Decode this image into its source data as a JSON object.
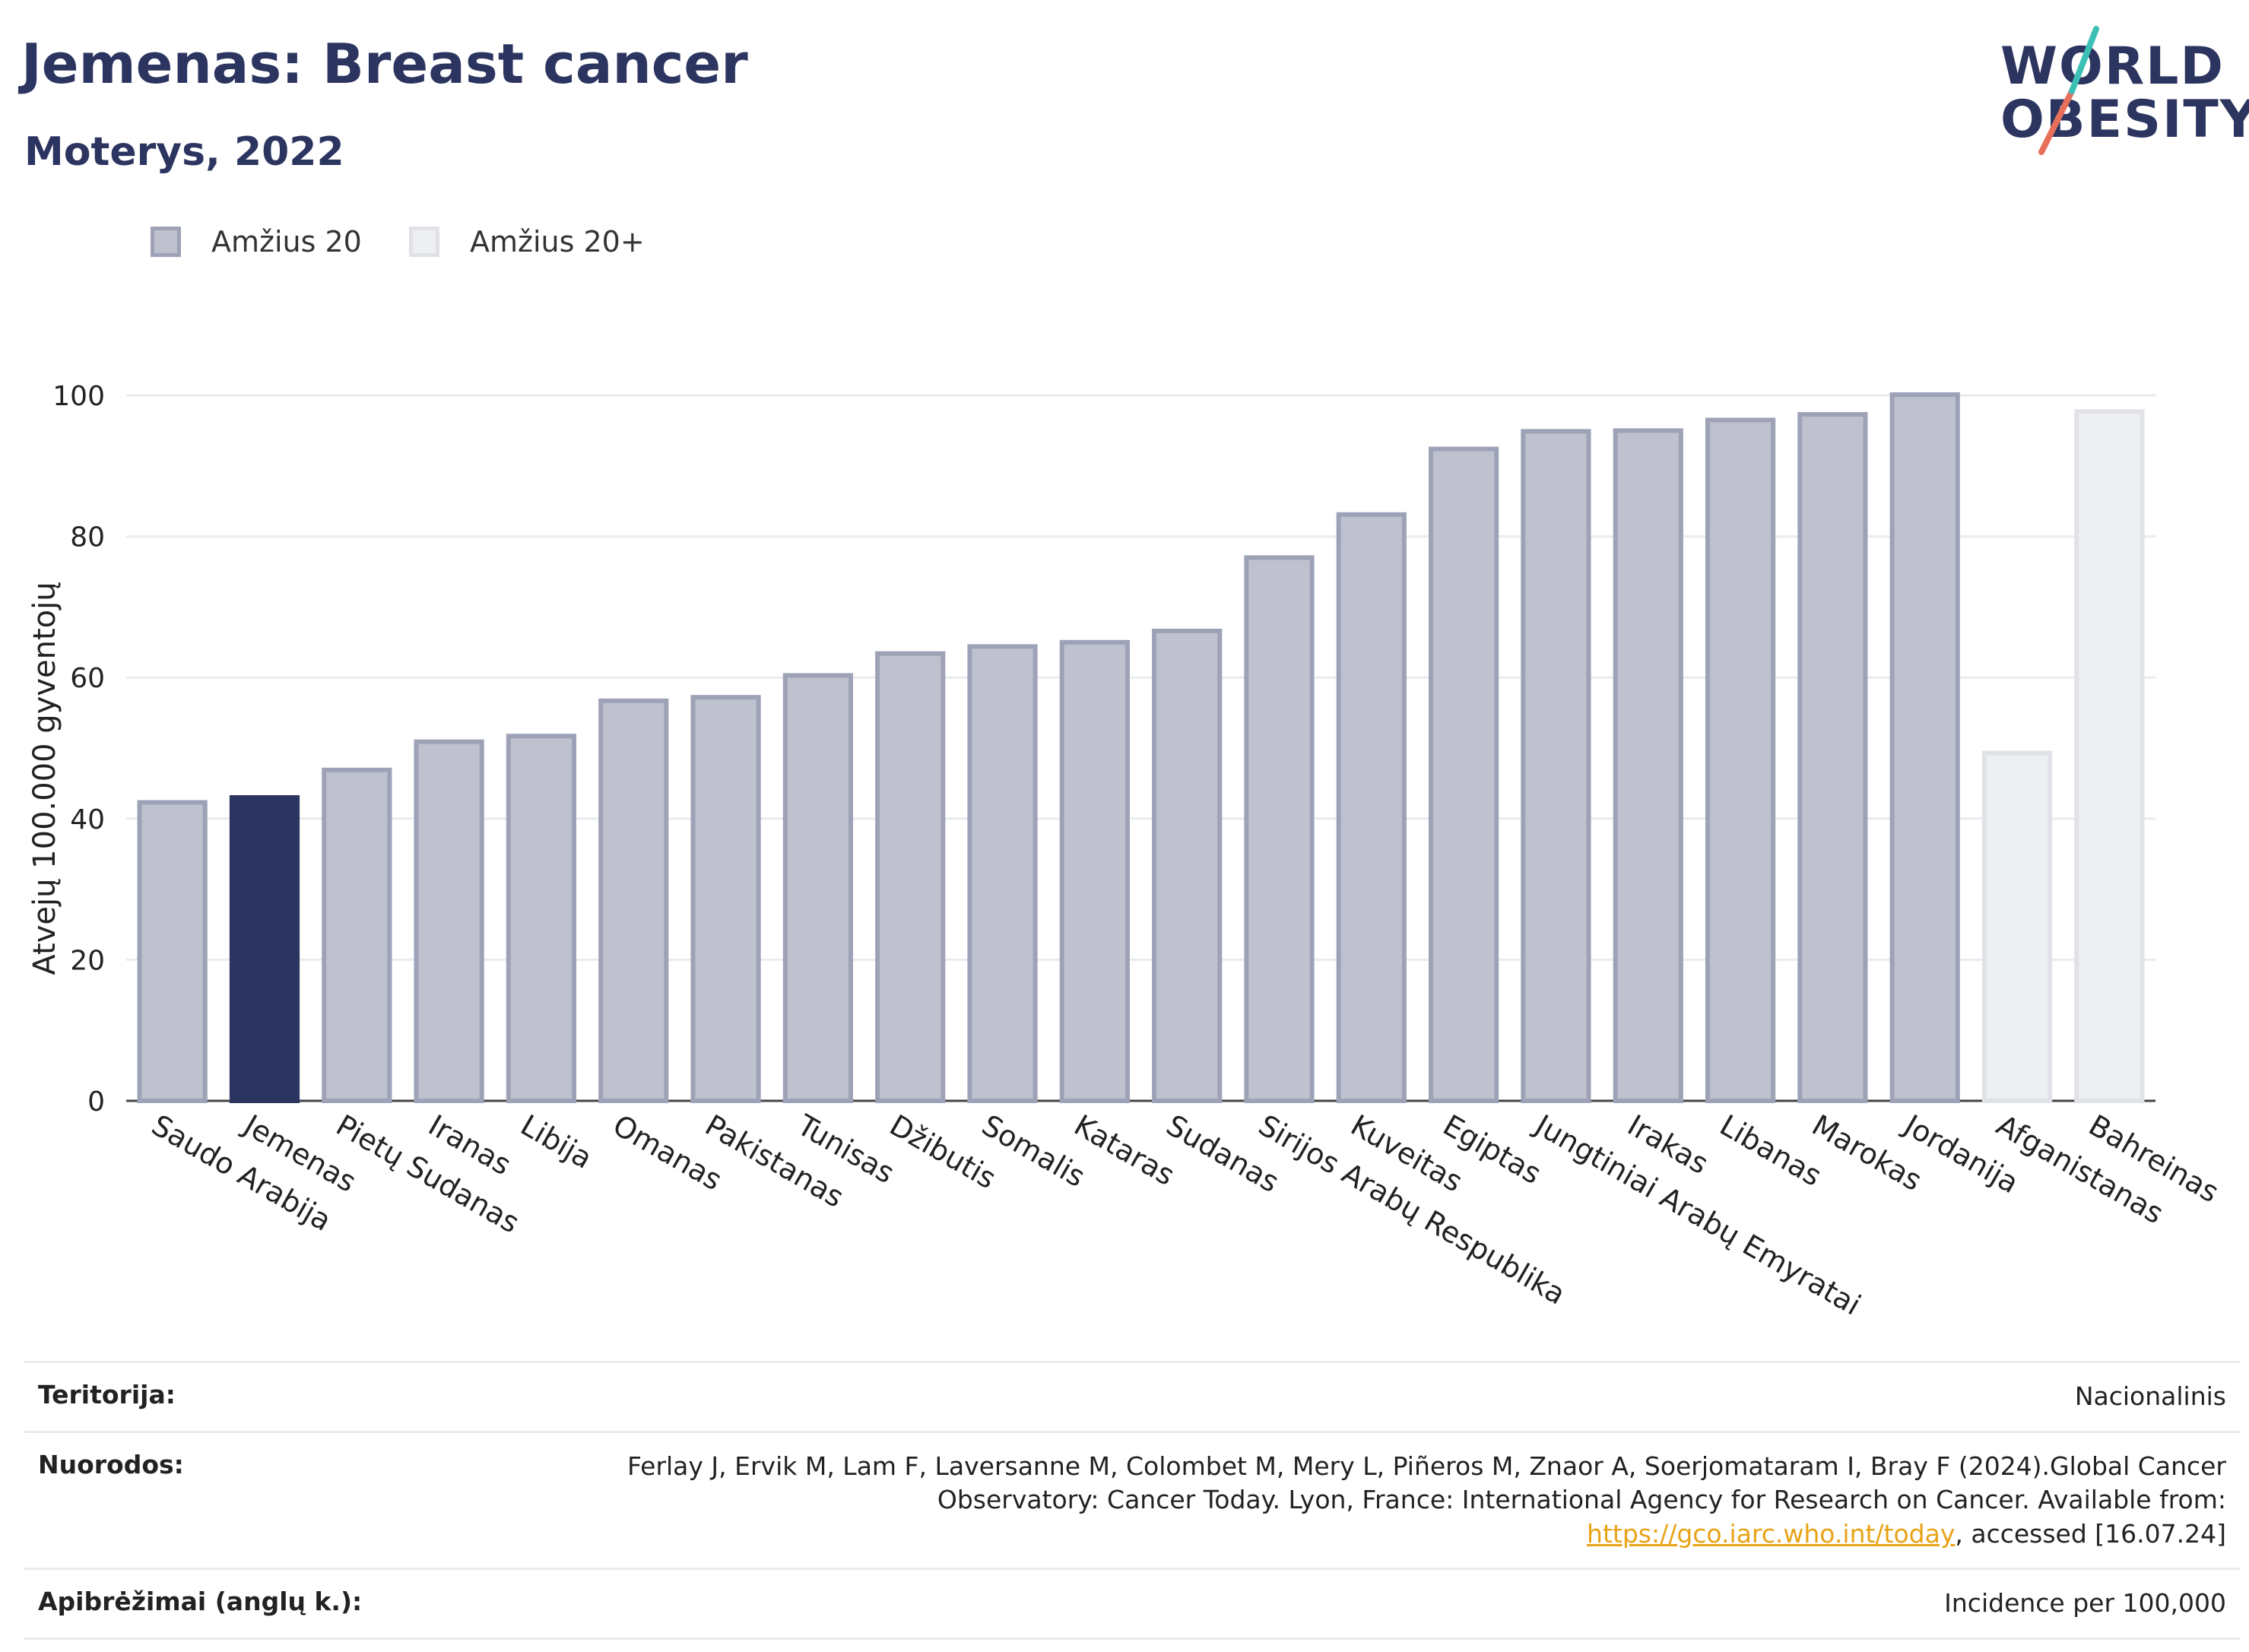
{
  "header": {
    "title": "Jemenas: Breast cancer",
    "subtitle": "Moterys, 2022"
  },
  "logo": {
    "line1": "WORLD",
    "line2": "OBESITY"
  },
  "legend": {
    "items": [
      {
        "label": "Amžius 20",
        "color": "#2c3560"
      },
      {
        "label": "Amžius 20+",
        "color": "#e4e6ec"
      }
    ]
  },
  "chart_data": {
    "type": "bar",
    "ylabel": "Atvejų 100.000 gyventojų",
    "ylim": [
      0,
      100
    ],
    "yticks": [
      0,
      20,
      40,
      60,
      80,
      100
    ],
    "grid": true,
    "legend_position": "top-left",
    "categories": [
      "Saudo Arabija",
      "Jemenas",
      "Pietų Sudanas",
      "Iranas",
      "Libija",
      "Omanas",
      "Pakistanas",
      "Tunisas",
      "Džibutis",
      "Somalis",
      "Kataras",
      "Sudanas",
      "Sirijos Arabų Respublika",
      "Kuveitas",
      "Egiptas",
      "Jungtiniai Arabų Emyratai",
      "Irakas",
      "Libanas",
      "Marokas",
      "Jordanija",
      "Afganistanas",
      "Bahreinas"
    ],
    "values": [
      42.3,
      43,
      46.9,
      50.9,
      51.7,
      56.7,
      57.2,
      60.3,
      63.4,
      64.4,
      65,
      66.6,
      77,
      83.1,
      92.4,
      94.9,
      95,
      96.5,
      97.3,
      100.1,
      49.3,
      97.7
    ],
    "series_membership": [
      "Amžius 20",
      "Amžius 20",
      "Amžius 20",
      "Amžius 20",
      "Amžius 20",
      "Amžius 20",
      "Amžius 20",
      "Amžius 20",
      "Amžius 20",
      "Amžius 20",
      "Amžius 20",
      "Amžius 20",
      "Amžius 20",
      "Amžius 20",
      "Amžius 20",
      "Amžius 20",
      "Amžius 20",
      "Amžius 20",
      "Amžius 20",
      "Amžius 20",
      "Amžius 20+",
      "Amžius 20+"
    ],
    "highlight": "Jemenas",
    "colors": {
      "highlight": "#2c3560",
      "age20_fill": "#bfc2ce",
      "age20_stroke": "#9da2b7",
      "age20plus_fill": "#eeeff3",
      "age20plus_stroke": "#e0e2e8",
      "grid": "#e9ebef"
    }
  },
  "footer": {
    "rows": [
      {
        "label": "Teritorija:",
        "value": "Nacionalinis"
      },
      {
        "label": "Nuorodos:",
        "value_pre": "Ferlay J, Ervik M, Lam F, Laversanne M, Colombet M, Mery L, Piñeros M, Znaor A, Soerjomataram I, Bray F (2024).Global Cancer Observatory: Cancer Today. Lyon, France: International Agency for Research on Cancer. Available from: ",
        "link": "https://gco.iarc.who.int/today",
        "value_post": ", accessed [16.07.24]"
      },
      {
        "label": "Apibrėžimai (anglų k.):",
        "value": "Incidence per 100,000"
      }
    ]
  }
}
